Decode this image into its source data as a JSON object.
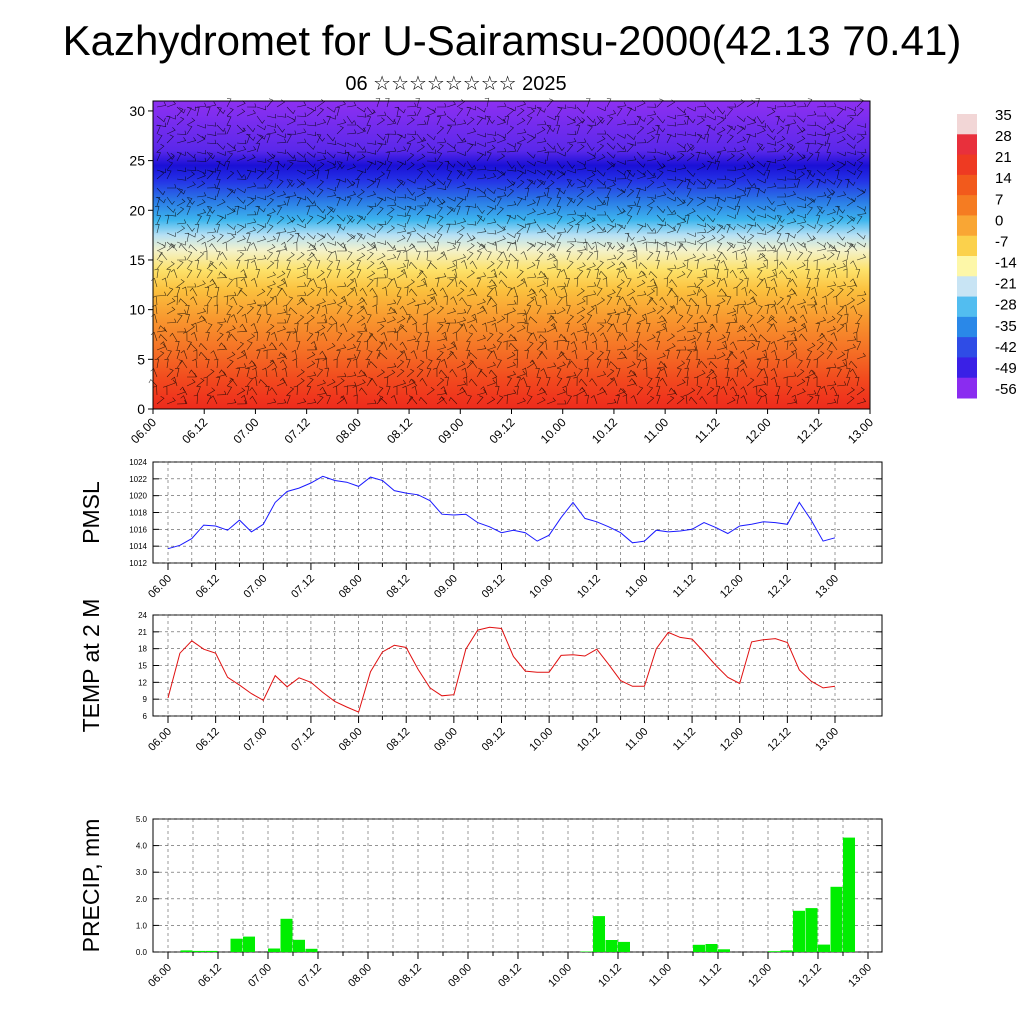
{
  "title": "Kazhydromet for U-Sairamsu-2000(42.13 70.41)",
  "subtitle": "06 ☆☆☆☆☆☆☆☆ 2025",
  "colors": {
    "pmsl_line": "#1a1aff",
    "temp_line": "#e01010",
    "precip_bar": "#00ee00",
    "wind_barbs": "#000000",
    "grid": "#555555"
  },
  "chart_data": [
    {
      "type": "heatmap",
      "name_in_figure": "",
      "x_ticks": [
        "06.00",
        "06.12",
        "07.00",
        "07.12",
        "08.00",
        "08.12",
        "09.00",
        "09.12",
        "10.00",
        "10.12",
        "11.00",
        "11.12",
        "12.00",
        "12.12",
        "13.00"
      ],
      "y_ticks": [
        0,
        5,
        10,
        15,
        20,
        25,
        30
      ],
      "ylim": [
        0,
        31
      ],
      "overlay": "wind barbs",
      "colorbar": {
        "labels": [
          "35",
          "28",
          "21",
          "14",
          "7",
          "0",
          "-7",
          "-14",
          "-21",
          "-28",
          "-35",
          "-42",
          "-49",
          "-56"
        ],
        "colors": [
          "#f2d6d6",
          "#e8303c",
          "#ee3a22",
          "#f25a1c",
          "#f57c22",
          "#f9a634",
          "#fbd14c",
          "#fdf7a8",
          "#c8e4f4",
          "#52bdf0",
          "#2a88e8",
          "#2f4ce6",
          "#3a20e6",
          "#8a2cf0"
        ]
      },
      "zones": [
        {
          "from": 0,
          "to": 3,
          "value": "14 to 21"
        },
        {
          "from": 3,
          "to": 9,
          "value": "7 to 14"
        },
        {
          "from": 9,
          "to": 14,
          "value": "0 to 7"
        },
        {
          "from": 14,
          "to": 17,
          "value": "-14 to 0"
        },
        {
          "from": 17,
          "to": 21,
          "value": "-28 to -14"
        },
        {
          "from": 21,
          "to": 25,
          "value": "-56 to -42"
        },
        {
          "from": 25,
          "to": 31,
          "value": "-56"
        }
      ],
      "x_range": [
        0,
        14
      ]
    },
    {
      "type": "line",
      "ylabel": "PMSL",
      "ylim": [
        1012,
        1024
      ],
      "y_ticks": [
        1012,
        1014,
        1016,
        1018,
        1020,
        1022,
        1024
      ],
      "x_ticks": [
        "06.00",
        "06.12",
        "07.00",
        "07.12",
        "08.00",
        "08.12",
        "09.00",
        "09.12",
        "10.00",
        "10.12",
        "11.00",
        "11.12",
        "12.00",
        "12.12",
        "13.00"
      ],
      "series": [
        {
          "values": [
            1013.7,
            1014.1,
            1014.9,
            1016.5,
            1016.4,
            1015.9,
            1017.1,
            1015.7,
            1016.6,
            1019.2,
            1020.5,
            1020.9,
            1021.5,
            1022.3,
            1021.8,
            1021.6,
            1021.1,
            1022.2,
            1021.8,
            1020.6,
            1020.3,
            1020.1,
            1019.4,
            1017.8,
            1017.7,
            1017.8,
            1016.8,
            1016.3,
            1015.6,
            1015.9,
            1015.6,
            1014.6,
            1015.3,
            1017.4,
            1019.2,
            1017.3,
            1016.9,
            1016.3,
            1015.6,
            1014.4,
            1014.6,
            1015.9,
            1015.7,
            1015.8,
            1016.0,
            1016.8,
            1016.2,
            1015.5,
            1016.4,
            1016.6,
            1016.9,
            1016.8,
            1016.6,
            1019.2,
            1017.1,
            1014.6,
            1015.0
          ]
        }
      ]
    },
    {
      "type": "line",
      "ylabel": "TEMP at 2 M",
      "ylim": [
        6,
        24
      ],
      "y_ticks": [
        6,
        9,
        12,
        15,
        18,
        21,
        24
      ],
      "x_ticks": [
        "06.00",
        "06.12",
        "07.00",
        "07.12",
        "08.00",
        "08.12",
        "09.00",
        "09.12",
        "10.00",
        "10.12",
        "11.00",
        "11.12",
        "12.00",
        "12.12",
        "13.00"
      ],
      "series": [
        {
          "values": [
            9.2,
            17.2,
            19.4,
            17.9,
            17.2,
            12.9,
            11.5,
            10.0,
            8.8,
            13.2,
            11.2,
            12.8,
            12.0,
            10.2,
            8.6,
            7.6,
            6.7,
            13.9,
            17.4,
            18.6,
            18.2,
            14.3,
            11.0,
            9.6,
            9.8,
            17.9,
            21.3,
            21.8,
            21.6,
            16.6,
            14.0,
            13.8,
            13.8,
            16.8,
            16.9,
            16.7,
            17.9,
            15.2,
            12.3,
            11.3,
            11.3,
            18.0,
            20.9,
            20.0,
            19.7,
            17.4,
            15.0,
            12.9,
            11.8,
            19.2,
            19.6,
            19.8,
            19.1,
            14.2,
            12.2,
            11.0,
            11.3
          ]
        }
      ]
    },
    {
      "type": "bar",
      "ylabel": "PRECIP, mm",
      "ylim": [
        0,
        5
      ],
      "y_ticks": [
        "0.0",
        "1.0",
        "2.0",
        "3.0",
        "4.0",
        "5.0"
      ],
      "x_ticks": [
        "06.00",
        "06.12",
        "07.00",
        "07.12",
        "08.00",
        "08.12",
        "09.00",
        "09.12",
        "10.00",
        "10.12",
        "11.00",
        "11.12",
        "12.00",
        "12.12",
        "13.00"
      ],
      "values": [
        0.0,
        0.06,
        0.04,
        0.04,
        0.0,
        0.5,
        0.58,
        0.0,
        0.13,
        1.25,
        0.46,
        0.12,
        0.0,
        0.0,
        0.0,
        0.0,
        0.0,
        0.0,
        0.0,
        0.0,
        0.0,
        0.0,
        0.0,
        0.0,
        0.0,
        0.0,
        0.0,
        0.0,
        0.0,
        0.0,
        0.0,
        0.0,
        0.0,
        0.02,
        1.35,
        0.45,
        0.38,
        0.0,
        0.0,
        0.0,
        0.0,
        0.0,
        0.27,
        0.3,
        0.1,
        0.0,
        0.0,
        0.0,
        0.03,
        0.06,
        1.55,
        1.65,
        0.28,
        2.45,
        4.3,
        0.0
      ]
    }
  ]
}
